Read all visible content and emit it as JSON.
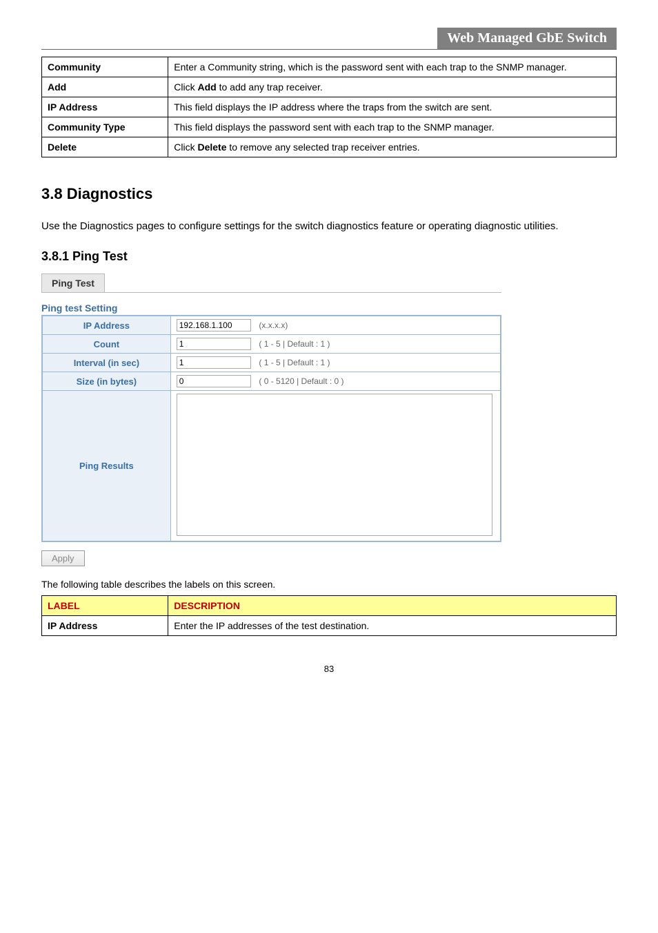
{
  "header": {
    "title": "Web Managed GbE Switch"
  },
  "table1": {
    "rows": [
      {
        "label": "Community",
        "desc": "Enter a Community string, which is the password sent with each trap to the SNMP manager."
      },
      {
        "label": "Add",
        "desc_pre": "Click ",
        "desc_bold": "Add",
        "desc_post": " to add any trap receiver."
      },
      {
        "label": "IP Address",
        "desc": "This field displays the IP address where the traps from the switch are sent."
      },
      {
        "label": "Community Type",
        "desc": "This field displays the password sent with each trap to the SNMP manager."
      },
      {
        "label": "Delete",
        "desc_pre": "Click ",
        "desc_bold": "Delete",
        "desc_post": " to remove any selected trap receiver entries."
      }
    ]
  },
  "section": {
    "h2": "3.8 Diagnostics",
    "intro": "Use the Diagnostics pages to configure settings for the switch diagnostics feature or operating diagnostic utilities.",
    "h3": "3.8.1 Ping Test"
  },
  "ping": {
    "tab": "Ping Test",
    "settingTitle": "Ping test Setting",
    "ip": {
      "label": "IP Address",
      "value": "192.168.1.100",
      "hint": "(x.x.x.x)"
    },
    "count": {
      "label": "Count",
      "value": "1",
      "hint": "( 1 - 5 | Default : 1 )"
    },
    "interval": {
      "label": "Interval (in sec)",
      "value": "1",
      "hint": "( 1 - 5 | Default : 1 )"
    },
    "size": {
      "label": "Size (in bytes)",
      "value": "0",
      "hint": "( 0 - 5120 | Default : 0 )"
    },
    "results": {
      "label": "Ping Results"
    },
    "apply": "Apply"
  },
  "caption": "The following table describes the labels on this screen.",
  "table2": {
    "h_label": "LABEL",
    "h_desc": "DESCRIPTION",
    "row": {
      "label": "IP Address",
      "desc": "Enter the IP addresses of the test destination."
    }
  },
  "pageNum": "83"
}
